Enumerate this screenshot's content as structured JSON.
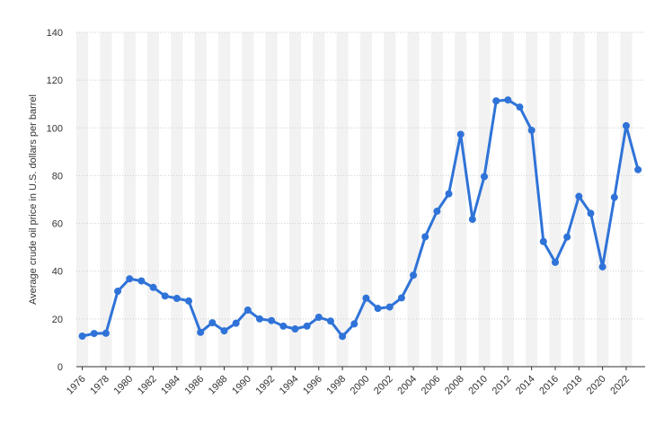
{
  "chart_data": {
    "type": "line",
    "title": "",
    "xlabel": "",
    "ylabel": "Average crude oil price in U.S. dollars per barrel",
    "ylim": [
      0,
      140
    ],
    "yticks": [
      0,
      20,
      40,
      60,
      80,
      100,
      120,
      140
    ],
    "grid": "horizontal dotted",
    "band_shading": "alternating vertical bands",
    "x_tick_labels": [
      "1976",
      "1978",
      "1980",
      "1982",
      "1984",
      "1986",
      "1988",
      "1990",
      "1992",
      "1994",
      "1996",
      "1998",
      "2000",
      "2002",
      "2004",
      "2006",
      "2008",
      "2010",
      "2012",
      "2014",
      "2016",
      "2018",
      "2020",
      "2022"
    ],
    "x": [
      1976,
      1977,
      1978,
      1979,
      1980,
      1981,
      1982,
      1983,
      1984,
      1985,
      1986,
      1987,
      1988,
      1989,
      1990,
      1991,
      1992,
      1993,
      1994,
      1995,
      1996,
      1997,
      1998,
      1999,
      2000,
      2001,
      2002,
      2003,
      2004,
      2005,
      2006,
      2007,
      2008,
      2009,
      2010,
      2011,
      2012,
      2013,
      2014,
      2015,
      2016,
      2017,
      2018,
      2019,
      2020,
      2021,
      2022,
      2023
    ],
    "series": [
      {
        "values": [
          12.8,
          13.9,
          14.0,
          31.6,
          36.8,
          35.9,
          33.2,
          29.6,
          28.6,
          27.5,
          14.4,
          18.4,
          15.0,
          18.2,
          23.7,
          20.0,
          19.3,
          17.0,
          15.8,
          17.0,
          20.7,
          19.1,
          12.7,
          17.9,
          28.7,
          24.4,
          25.0,
          28.8,
          38.3,
          54.4,
          65.1,
          72.4,
          97.3,
          61.7,
          79.6,
          111.3,
          111.7,
          108.7,
          99.0,
          52.4,
          43.7,
          54.3,
          71.3,
          64.2,
          41.8,
          70.9,
          100.9,
          82.5
        ]
      }
    ],
    "colors": {
      "line": "#2f73d8",
      "band": "#f2f2f2",
      "grid": "#cccccc",
      "axis": "#333333"
    }
  }
}
